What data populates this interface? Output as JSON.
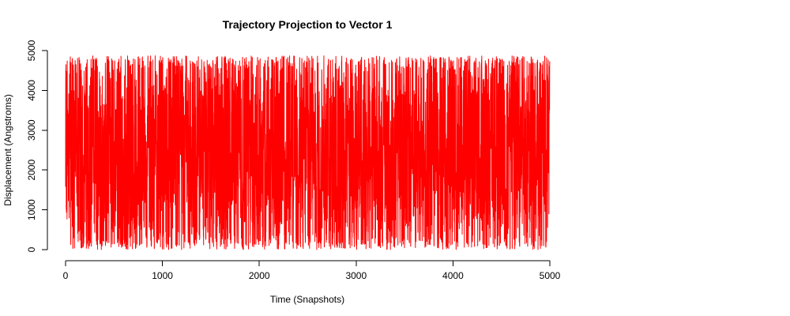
{
  "chart_data": {
    "type": "line",
    "title": "Trajectory Projection to Vector 1",
    "xlabel": "Time (Snapshots)",
    "ylabel": "Displacement (Angstroms)",
    "xlim": [
      0,
      5000
    ],
    "ylim": [
      0,
      5000
    ],
    "x_ticks": [
      "0",
      "1000",
      "2000",
      "3000",
      "4000",
      "5000"
    ],
    "y_ticks": [
      "0",
      "1000",
      "2000",
      "3000",
      "4000",
      "5000"
    ],
    "grid": false,
    "series": [
      {
        "color": "#ff0000",
        "n_points": 5000,
        "value_range": [
          0,
          4870
        ],
        "description": "dense oscillating trajectory between roughly 0 and 4870"
      }
    ]
  }
}
